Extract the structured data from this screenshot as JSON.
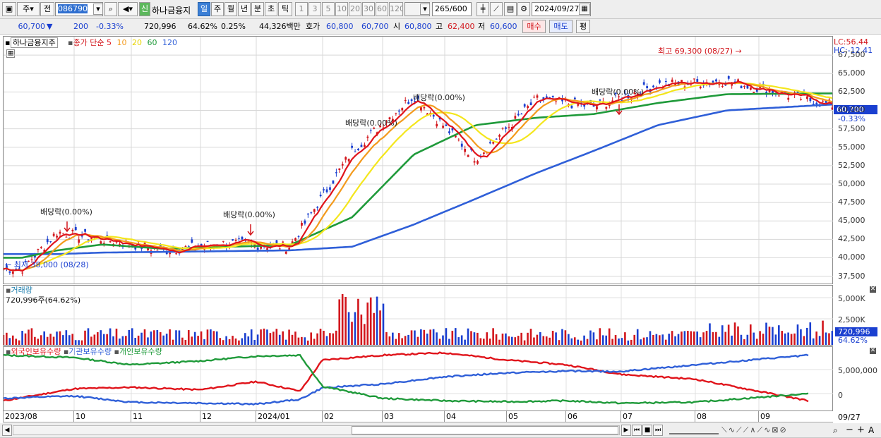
{
  "toolbar": {
    "period_unit": "주",
    "prev": "전",
    "code": "086790",
    "new_badge": "신",
    "name": "하나금융지",
    "periods": [
      "일",
      "주",
      "월",
      "년",
      "분",
      "초",
      "틱"
    ],
    "selected_period": "일",
    "minutes": [
      "1",
      "3",
      "5",
      "10",
      "20",
      "30",
      "60",
      "120"
    ],
    "count": "265",
    "count_max": "/600",
    "date": "2024/09/27"
  },
  "quote": {
    "price": "60,700",
    "arrow": "▼",
    "change": "200",
    "change_pct": "-0.33%",
    "volume": "720,996",
    "volume_pct": "64.62%",
    "turnover_pct": "0.25%",
    "amount": "44,326백만",
    "hoga_label": "호가",
    "hoga_ask": "60,800",
    "hoga_bid": "60,700",
    "open_label": "시",
    "open": "60,800",
    "high_label": "고",
    "high": "62,400",
    "low_label": "저",
    "low": "60,600",
    "buy": "매수",
    "sell": "매도",
    "eval": "평"
  },
  "price_panel": {
    "stock": "하나금융지주",
    "legend_prefix": "종가 단순",
    "ma_labels": [
      "5",
      "10",
      "20",
      "60",
      "120"
    ],
    "ma_colors": [
      "#e0141b",
      "#f39a1c",
      "#f4e61c",
      "#1f9a3a",
      "#2f5fd8"
    ],
    "lc": "LC:56.44",
    "hc": "HC:-12.41",
    "last_price": "60,700",
    "last_pct": "-0.33%",
    "high_note": "최고 69,300 (08/27)",
    "low_note": "최저 38,000 (08/28)",
    "dividend_notes": [
      "배당락(0.00%)",
      "배당락(0.00%)",
      "배당락(0.00%)",
      "배당락(0.00%)",
      "배당락(0.00%)"
    ]
  },
  "volume_panel": {
    "title": "거래량",
    "value": "720,996주(64.62%)",
    "last": "720,996",
    "last_pct": "64.62%"
  },
  "holding_panel": {
    "legend": [
      "외국인보유수량",
      "기관보유수량",
      "개인보유수량"
    ],
    "colors": [
      "#e0141b",
      "#2f5fd8",
      "#1f9a3a"
    ]
  },
  "xaxis": {
    "labels": [
      "2023/08",
      "10",
      "11",
      "12",
      "2024/01",
      "02",
      "03",
      "04",
      "05",
      "06",
      "07",
      "08",
      "09"
    ],
    "end": "09/27"
  },
  "chart_data": [
    {
      "type": "line",
      "title": "하나금융지주",
      "x": [
        "2023/08",
        "2023/09",
        "2023/10",
        "2023/11",
        "2023/12",
        "2024/01",
        "2024/02",
        "2024/03",
        "2024/04",
        "2024/05",
        "2024/06",
        "2024/07",
        "2024/08",
        "2024/09"
      ],
      "series": [
        {
          "name": "종가 단순 5",
          "values": [
            38500,
            43500,
            42500,
            41000,
            42000,
            41500,
            54500,
            62000,
            53500,
            61500,
            60500,
            63500,
            64000,
            60700
          ]
        },
        {
          "name": "60",
          "values": [
            40000,
            41000,
            41800,
            41200,
            41500,
            41700,
            45500,
            54000,
            58000,
            59000,
            59500,
            61000,
            62200,
            62300
          ]
        },
        {
          "name": "120",
          "values": [
            40500,
            40500,
            40700,
            40800,
            40900,
            41000,
            41500,
            44500,
            48000,
            51500,
            54500,
            58000,
            60000,
            60800
          ]
        }
      ],
      "yticks": [
        67500,
        65000,
        62500,
        60000,
        57500,
        55000,
        52500,
        50000,
        47500,
        45000,
        42500,
        40000,
        37500
      ],
      "ylim": [
        36500,
        70000
      ],
      "annotations": [
        "최고 69,300 (08/27)",
        "최저 38,000 (08/28)"
      ]
    },
    {
      "type": "bar",
      "title": "거래량",
      "yticks": [
        "5,000K",
        "2,500K"
      ],
      "last": 720996
    },
    {
      "type": "line",
      "title": "보유수량",
      "series": [
        {
          "name": "외국인보유수량",
          "values": [
            -1500000,
            1000000,
            1300000,
            800000,
            2500000,
            500000,
            7000000,
            8000000,
            8500000,
            7000000,
            6000000,
            4000000,
            3000000,
            -1500000
          ]
        },
        {
          "name": "기관보유수량",
          "values": [
            -1000000,
            -500000,
            -1800000,
            -2000000,
            -2200000,
            -1200000,
            1200000,
            2000000,
            3500000,
            4300000,
            4700000,
            4600000,
            6000000,
            8000000
          ]
        },
        {
          "name": "개인보유수량",
          "values": [
            8000000,
            7500000,
            6000000,
            6800000,
            7800000,
            8000000,
            1500000,
            -1000000,
            -1500000,
            -1700000,
            -1500000,
            -2000000,
            -1800000,
            0
          ]
        }
      ],
      "yticks": [
        "5,000,000",
        "0"
      ]
    }
  ]
}
